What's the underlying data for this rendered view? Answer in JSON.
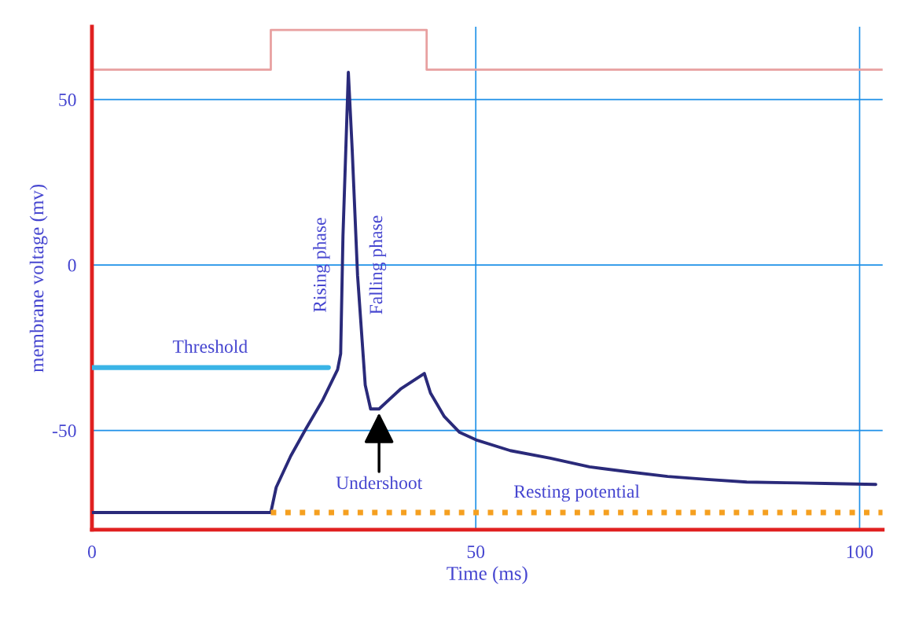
{
  "chart_data": {
    "type": "line",
    "xlabel": "Time (ms)",
    "ylabel": "membrane voltage (mv)",
    "xlim": [
      0,
      103
    ],
    "ylim": [
      -80,
      72
    ],
    "xticks": [
      0,
      50,
      100
    ],
    "yticks": [
      -50,
      0,
      50
    ],
    "grid": true,
    "legend": false,
    "series": [
      {
        "color": "#e8a0a0",
        "type": "step",
        "x": [
          0,
          23.3,
          43.6,
          103
        ],
        "values": [
          59,
          71,
          59,
          59
        ]
      },
      {
        "color": "#2a2a7a",
        "x": [
          0,
          23.3,
          24.0,
          25.9,
          27.9,
          30.0,
          32.0,
          32.4,
          32.7,
          33.4,
          33.9,
          34.6,
          35.6,
          36.3,
          37.4,
          40.2,
          43.3,
          44.1,
          45.9,
          47.9,
          50.2,
          54.5,
          59.7,
          64.8,
          69.9,
          75.0,
          80.1,
          85.3,
          90.4,
          95.5,
          102.1
        ],
        "values": [
          -74.8,
          -74.8,
          -67.2,
          -57.7,
          -49.4,
          -41.1,
          -31.6,
          -26.8,
          8.8,
          58.2,
          34.9,
          -3.1,
          -36.3,
          -43.5,
          -43.5,
          -37.5,
          -32.8,
          -38.7,
          -45.8,
          -50.6,
          -53.0,
          -56.1,
          -58.4,
          -61.0,
          -62.5,
          -63.9,
          -64.8,
          -65.6,
          -65.8,
          -66.0,
          -66.3
        ]
      },
      {
        "name": "Threshold",
        "color": "#3ab4e6",
        "x": [
          0,
          30.8
        ],
        "values": [
          -31,
          -31
        ]
      },
      {
        "name": "Resting potential",
        "color": "#f5a020",
        "line_style": "dotted",
        "x": [
          23.3,
          103
        ],
        "values": [
          -74.8,
          -74.8
        ]
      }
    ],
    "annotations": [
      {
        "text": "Rising phase",
        "x": 32.7,
        "y": 0
      },
      {
        "text": "Falling phase",
        "x": 34.7,
        "y": 0
      },
      {
        "text": "Undershoot",
        "x": 37.4,
        "y": -44
      }
    ]
  }
}
